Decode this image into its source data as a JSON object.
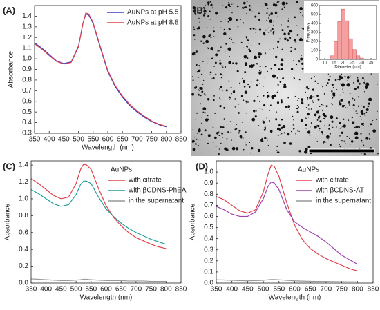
{
  "chart_data": [
    {
      "type": "line",
      "label": "(A)",
      "xlabel": "Wavelength (nm)",
      "ylabel": "Absorbance",
      "x": [
        350,
        375,
        400,
        425,
        450,
        475,
        500,
        515,
        525,
        535,
        550,
        575,
        600,
        625,
        650,
        675,
        700,
        725,
        750,
        775,
        800
      ],
      "series": [
        {
          "name": "AuNPs at pH 5.5",
          "color": "#3b3bc8",
          "values": [
            1.15,
            1.1,
            1.04,
            0.98,
            0.955,
            0.97,
            1.12,
            1.33,
            1.42,
            1.41,
            1.33,
            1.1,
            0.88,
            0.74,
            0.64,
            0.56,
            0.5,
            0.45,
            0.41,
            0.38,
            0.36
          ]
        },
        {
          "name": "AuNPs at pH 8.8",
          "color": "#e0404a",
          "values": [
            1.14,
            1.09,
            1.03,
            0.975,
            0.95,
            0.965,
            1.11,
            1.33,
            1.43,
            1.42,
            1.34,
            1.11,
            0.89,
            0.75,
            0.65,
            0.57,
            0.51,
            0.46,
            0.415,
            0.385,
            0.365
          ]
        }
      ],
      "xlim": [
        350,
        850
      ],
      "xticks": [
        350,
        400,
        450,
        500,
        550,
        600,
        650,
        700,
        750,
        800,
        850
      ],
      "ylim": [
        0.3,
        1.5
      ],
      "yticks": [
        0.3,
        0.4,
        0.5,
        0.6,
        0.7,
        0.8,
        0.9,
        {
          "value": 1.0,
          "label": "1.0"
        },
        1.1,
        1.2,
        1.3,
        1.4
      ]
    },
    {
      "type": "histogram",
      "label": "(B)",
      "xlabel": "Diameter (nm)",
      "ylabel": "Frequency",
      "color": "#f4a0a0",
      "bins": [
        11,
        13,
        15,
        17,
        19,
        21,
        23,
        25,
        27,
        29,
        31,
        33
      ],
      "counts": [
        5,
        40,
        200,
        420,
        560,
        430,
        230,
        110,
        40,
        15,
        5
      ],
      "xlim": [
        7,
        38
      ],
      "xticks": [
        10,
        15,
        20,
        25,
        30,
        35
      ],
      "ylim": [
        0,
        600
      ],
      "yticks": [
        0,
        100,
        200,
        300,
        400,
        500,
        600
      ]
    },
    {
      "type": "line",
      "label": "(C)",
      "xlabel": "Wavelength (nm)",
      "ylabel": "Absorbance",
      "legend_title": "AuNPs",
      "x": [
        350,
        375,
        400,
        425,
        450,
        475,
        500,
        515,
        525,
        535,
        550,
        575,
        600,
        625,
        650,
        675,
        700,
        725,
        750,
        775,
        800
      ],
      "series": [
        {
          "name": "with citrate",
          "color": "#e0404a",
          "values": [
            1.24,
            1.18,
            1.11,
            1.04,
            1.0,
            1.02,
            1.18,
            1.35,
            1.41,
            1.4,
            1.35,
            1.12,
            0.92,
            0.78,
            0.68,
            0.6,
            0.54,
            0.5,
            0.46,
            0.43,
            0.41
          ]
        },
        {
          "name": "with βCDNS-PhEA",
          "color": "#1f9c9c",
          "values": [
            1.11,
            1.06,
            1.0,
            0.94,
            0.91,
            0.93,
            1.05,
            1.17,
            1.21,
            1.21,
            1.18,
            1.02,
            0.88,
            0.79,
            0.71,
            0.65,
            0.6,
            0.56,
            0.52,
            0.49,
            0.46
          ]
        },
        {
          "name": "in the supernatant",
          "color": "#999999",
          "values": [
            0.05,
            0.045,
            0.04,
            0.035,
            0.03,
            0.03,
            0.035,
            0.04,
            0.045,
            0.045,
            0.04,
            0.035,
            0.03,
            0.03,
            0.03,
            0.025,
            0.025,
            0.025,
            0.02,
            0.02,
            0.02
          ]
        }
      ],
      "xlim": [
        350,
        850
      ],
      "xticks": [
        350,
        400,
        450,
        500,
        550,
        600,
        650,
        700,
        750,
        800,
        850
      ],
      "ylim": [
        0,
        1.45
      ],
      "yticks": [
        {
          "value": 0,
          "label": "0.0"
        },
        0.2,
        0.4,
        0.6,
        0.8,
        {
          "value": 1.0,
          "label": "1.0"
        },
        1.2,
        1.4
      ]
    },
    {
      "type": "line",
      "label": "(D)",
      "xlabel": "Wavelength (nm)",
      "ylabel": "Absorbance",
      "legend_title": "AuNPs",
      "x": [
        350,
        375,
        400,
        425,
        450,
        475,
        500,
        515,
        525,
        535,
        550,
        575,
        600,
        625,
        650,
        675,
        700,
        725,
        750,
        775,
        800
      ],
      "series": [
        {
          "name": "with citrate",
          "color": "#e0404a",
          "values": [
            0.78,
            0.75,
            0.7,
            0.65,
            0.63,
            0.66,
            0.82,
            0.98,
            1.06,
            1.05,
            0.96,
            0.72,
            0.52,
            0.39,
            0.31,
            0.26,
            0.22,
            0.19,
            0.16,
            0.13,
            0.11
          ]
        },
        {
          "name": "with βCDNS-AT",
          "color": "#a040b0",
          "values": [
            0.69,
            0.66,
            0.62,
            0.6,
            0.6,
            0.64,
            0.76,
            0.87,
            0.91,
            0.9,
            0.84,
            0.66,
            0.55,
            0.5,
            0.46,
            0.42,
            0.37,
            0.31,
            0.25,
            0.21,
            0.17
          ]
        },
        {
          "name": "in the supernatant",
          "color": "#999999",
          "values": [
            0.03,
            0.028,
            0.025,
            0.022,
            0.02,
            0.022,
            0.025,
            0.03,
            0.032,
            0.032,
            0.03,
            0.025,
            0.02,
            0.018,
            0.016,
            0.015,
            0.014,
            0.013,
            0.012,
            0.011,
            0.01
          ]
        }
      ],
      "xlim": [
        350,
        850
      ],
      "xticks": [
        350,
        400,
        450,
        500,
        550,
        600,
        650,
        700,
        750,
        800,
        850
      ],
      "ylim": [
        0,
        1.1
      ],
      "yticks": [
        {
          "value": 0,
          "label": "0.0"
        },
        0.1,
        0.2,
        0.3,
        0.4,
        0.5,
        0.6,
        0.7,
        0.8,
        0.9,
        {
          "value": 1.0,
          "label": "1.0"
        }
      ]
    }
  ]
}
